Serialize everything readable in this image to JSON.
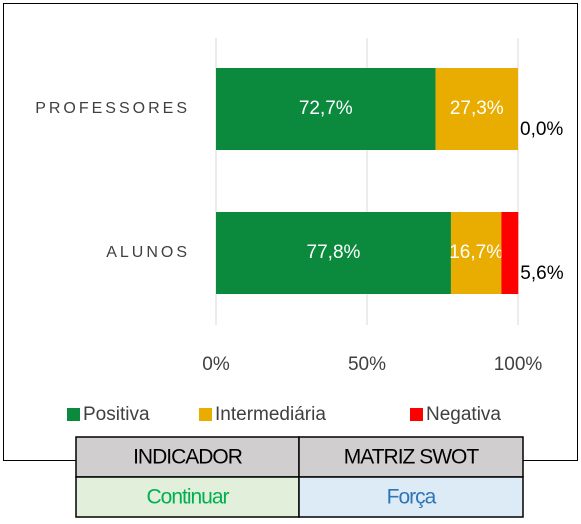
{
  "chart_data": {
    "type": "stacked_barh",
    "categories": [
      "PROFESSORES",
      "ALUNOS"
    ],
    "series": [
      {
        "name": "Positiva",
        "color": "#0b8a3e",
        "values": [
          72.7,
          77.8
        ],
        "value_labels": [
          "72,7%",
          "77,8%"
        ]
      },
      {
        "name": "Intermediária",
        "color": "#e8ad00",
        "values": [
          27.3,
          16.7
        ],
        "value_labels": [
          "27,3%",
          "16,7%"
        ]
      },
      {
        "name": "Negativa",
        "color": "#ff0000",
        "values": [
          0.0,
          5.6
        ],
        "value_labels": [
          "0,0%",
          "5,6%"
        ]
      }
    ],
    "xlim": [
      0,
      100
    ],
    "xticks": [
      {
        "value": 0,
        "label": "0%"
      },
      {
        "value": 50,
        "label": "50%"
      },
      {
        "value": 100,
        "label": "100%"
      }
    ],
    "grid": true,
    "legend": "bottom"
  },
  "table": {
    "rows": [
      [
        "INDICADOR",
        "MATRIZ SWOT"
      ],
      [
        "Continuar",
        "Força"
      ]
    ]
  }
}
